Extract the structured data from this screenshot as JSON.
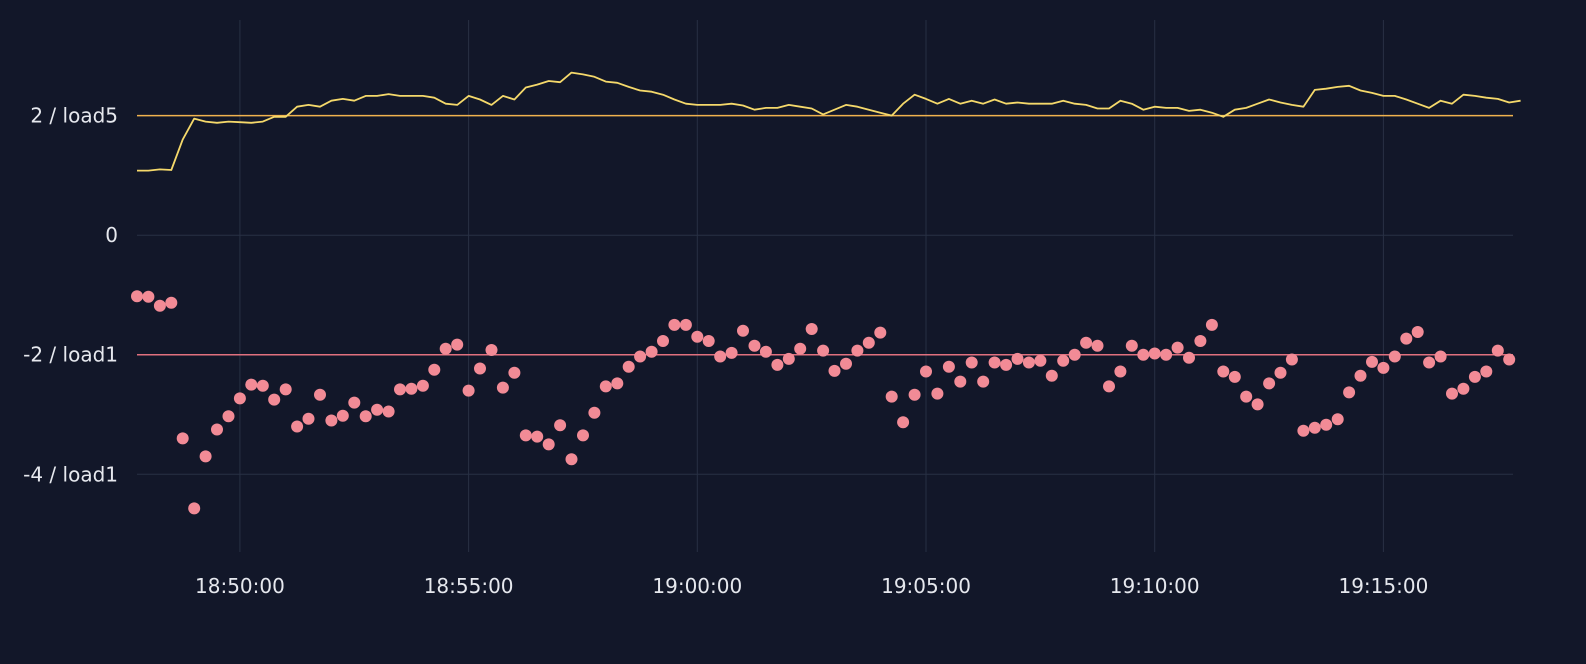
{
  "colors": {
    "background": "#121729",
    "grid": "#283044",
    "load5": "#f5d96b",
    "load5_threshold": "#f0b24e",
    "load1": "#f28b96",
    "load1_threshold": "#e0707e",
    "text": "#e6e8ee"
  },
  "chart_data": {
    "type": "line",
    "grid": true,
    "xlabel": "",
    "ylabel": "",
    "xlim": [
      "18:47:45",
      "19:17:50"
    ],
    "ylim": [
      -5.3,
      3.6
    ],
    "x_ticks": [
      "18:50:00",
      "18:55:00",
      "19:00:00",
      "19:05:00",
      "19:10:00",
      "19:15:00"
    ],
    "y_ticks": [
      {
        "value": 2,
        "label": "2 / load5"
      },
      {
        "value": 0,
        "label": "0"
      },
      {
        "value": -2,
        "label": "-2 / load1"
      },
      {
        "value": -4,
        "label": "-4 / load1"
      }
    ],
    "thresholds": [
      {
        "series": "load5",
        "value": 2
      },
      {
        "series": "load1",
        "value": -2
      }
    ],
    "series": [
      {
        "name": "load5",
        "style": "line",
        "x_start": "18:47:45",
        "interval_seconds": 15,
        "values": [
          1.08,
          1.08,
          1.1,
          1.09,
          1.6,
          1.95,
          1.9,
          1.88,
          1.9,
          1.89,
          1.88,
          1.9,
          1.98,
          1.98,
          2.15,
          2.18,
          2.15,
          2.25,
          2.28,
          2.25,
          2.33,
          2.33,
          2.36,
          2.33,
          2.33,
          2.33,
          2.3,
          2.2,
          2.18,
          2.33,
          2.27,
          2.18,
          2.33,
          2.27,
          2.47,
          2.52,
          2.58,
          2.56,
          2.72,
          2.69,
          2.65,
          2.57,
          2.55,
          2.48,
          2.42,
          2.4,
          2.35,
          2.27,
          2.2,
          2.18,
          2.18,
          2.18,
          2.2,
          2.17,
          2.1,
          2.13,
          2.13,
          2.18,
          2.15,
          2.12,
          2.02,
          2.1,
          2.18,
          2.15,
          2.1,
          2.05,
          2.0,
          2.2,
          2.35,
          2.28,
          2.2,
          2.28,
          2.2,
          2.25,
          2.2,
          2.27,
          2.2,
          2.22,
          2.2,
          2.2,
          2.2,
          2.25,
          2.2,
          2.18,
          2.12,
          2.12,
          2.25,
          2.2,
          2.1,
          2.15,
          2.13,
          2.13,
          2.08,
          2.1,
          2.05,
          1.98,
          2.1,
          2.13,
          2.2,
          2.27,
          2.22,
          2.18,
          2.15,
          2.43,
          2.45,
          2.48,
          2.5,
          2.42,
          2.38,
          2.33,
          2.33,
          2.27,
          2.2,
          2.13,
          2.25,
          2.2,
          2.35,
          2.33,
          2.3,
          2.28,
          2.22,
          2.25
        ]
      },
      {
        "name": "load1",
        "style": "scatter",
        "x_start": "18:47:45",
        "interval_seconds": 15,
        "values": [
          -1.02,
          -1.03,
          -1.18,
          -1.13,
          -3.4,
          -4.57,
          -3.7,
          -3.25,
          -3.03,
          -2.73,
          -2.5,
          -2.52,
          -2.75,
          -2.58,
          -3.2,
          -3.07,
          -2.67,
          -3.1,
          -3.02,
          -2.8,
          -3.03,
          -2.92,
          -2.95,
          -2.58,
          -2.57,
          -2.52,
          -2.25,
          -1.9,
          -1.83,
          -2.6,
          -2.23,
          -1.92,
          -2.55,
          -2.3,
          -3.35,
          -3.37,
          -3.5,
          -3.18,
          -3.75,
          -3.35,
          -2.97,
          -2.53,
          -2.48,
          -2.2,
          -2.03,
          -1.95,
          -1.77,
          -1.5,
          -1.5,
          -1.7,
          -1.77,
          -2.03,
          -1.97,
          -1.6,
          -1.85,
          -1.95,
          -2.17,
          -2.07,
          -1.9,
          -1.57,
          -1.93,
          -2.27,
          -2.15,
          -1.93,
          -1.8,
          -1.63,
          -2.7,
          -3.13,
          -2.67,
          -2.28,
          -2.65,
          -2.2,
          -2.45,
          -2.13,
          -2.45,
          -2.13,
          -2.17,
          -2.07,
          -2.13,
          -2.1,
          -2.35,
          -2.1,
          -2.0,
          -1.8,
          -1.85,
          -2.53,
          -2.28,
          -1.85,
          -2.0,
          -1.98,
          -2.0,
          -1.88,
          -2.05,
          -1.77,
          -1.5,
          -2.28,
          -2.37,
          -2.7,
          -2.83,
          -2.48,
          -2.3,
          -2.08,
          -3.27,
          -3.22,
          -3.17,
          -3.08,
          -2.63,
          -2.35,
          -2.12,
          -2.22,
          -2.03,
          -1.73,
          -1.62,
          -2.13,
          -2.03,
          -2.65,
          -2.57,
          -2.37,
          -2.28,
          -1.93,
          -2.08
        ]
      }
    ]
  }
}
